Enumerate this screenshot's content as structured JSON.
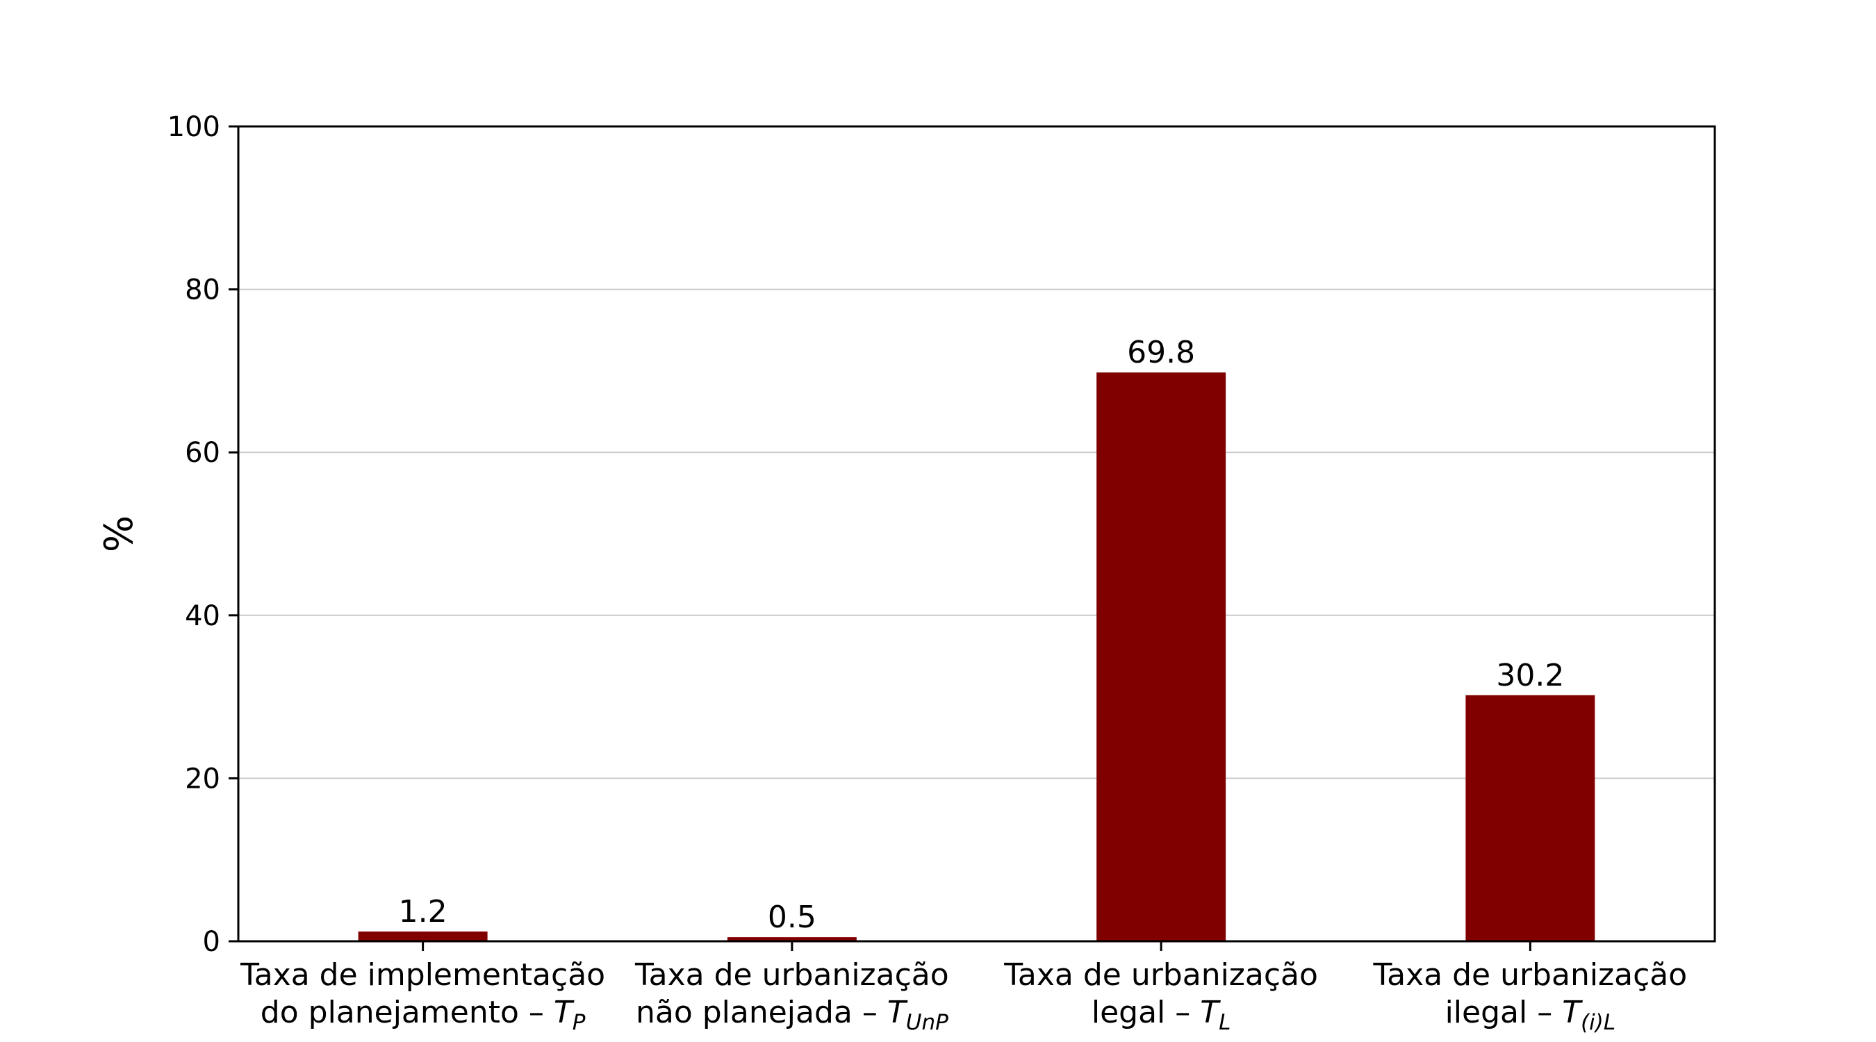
{
  "chart_data": {
    "type": "bar",
    "categories": [
      {
        "line1": "Taxa de implementação",
        "line2": "do planejamento –",
        "symbol": "T",
        "subscript": "P"
      },
      {
        "line1": "Taxa de urbanização",
        "line2": "não planejada –",
        "symbol": "T",
        "subscript": "UnP"
      },
      {
        "line1": "Taxa de urbanização",
        "line2": "legal –",
        "symbol": "T",
        "subscript": "L"
      },
      {
        "line1": "Taxa de urbanização",
        "line2": "ilegal –",
        "symbol": "T",
        "subscript": "(i)L"
      }
    ],
    "values": [
      1.2,
      0.5,
      69.8,
      30.2
    ],
    "value_labels": [
      "1.2",
      "0.5",
      "69.8",
      "30.2"
    ],
    "ylabel": "%",
    "ylim": [
      0,
      100
    ],
    "yticks": [
      0,
      20,
      40,
      60,
      80,
      100
    ],
    "grid": "horizontal",
    "colors": {
      "bar": "#800000",
      "grid": "#cccccc",
      "axis": "#000000"
    }
  }
}
